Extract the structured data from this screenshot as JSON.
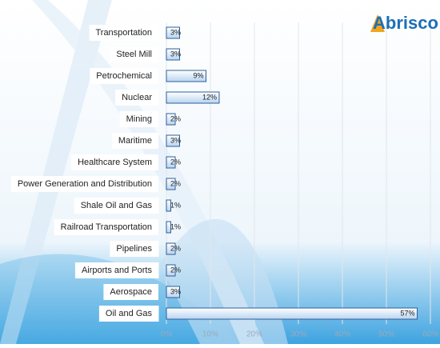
{
  "chart_data": {
    "type": "hbar",
    "logo": "Abrisco",
    "categories": [
      "Transportation",
      "Steel Mill",
      "Petrochemical",
      "Nuclear",
      "Mining",
      "Maritime",
      "Healthcare System",
      "Power Generation and Distribution",
      "Shale Oil and Gas",
      "Railroad Transportation",
      "Pipelines",
      "Airports and Ports",
      "Aerospace",
      "Oil and Gas"
    ],
    "values": [
      3,
      3,
      9,
      12,
      2,
      3,
      2,
      2,
      1,
      1,
      2,
      2,
      3,
      57
    ],
    "value_labels": [
      "3%",
      "3%",
      "9%",
      "12%",
      "2%",
      "3%",
      "2%",
      "2%",
      "1%",
      "1%",
      "2%",
      "2%",
      "3%",
      "57%"
    ],
    "color": "#cfe3f7",
    "xlim": [
      0,
      60
    ],
    "xticks": [
      {
        "value": 0,
        "label": "0%"
      },
      {
        "value": 10,
        "label": "10%"
      },
      {
        "value": 20,
        "label": "20%"
      },
      {
        "value": 30,
        "label": "30%"
      },
      {
        "value": 40,
        "label": "40%"
      },
      {
        "value": 50,
        "label": "50%"
      },
      {
        "value": 60,
        "label": "60%"
      }
    ],
    "grid": true
  }
}
